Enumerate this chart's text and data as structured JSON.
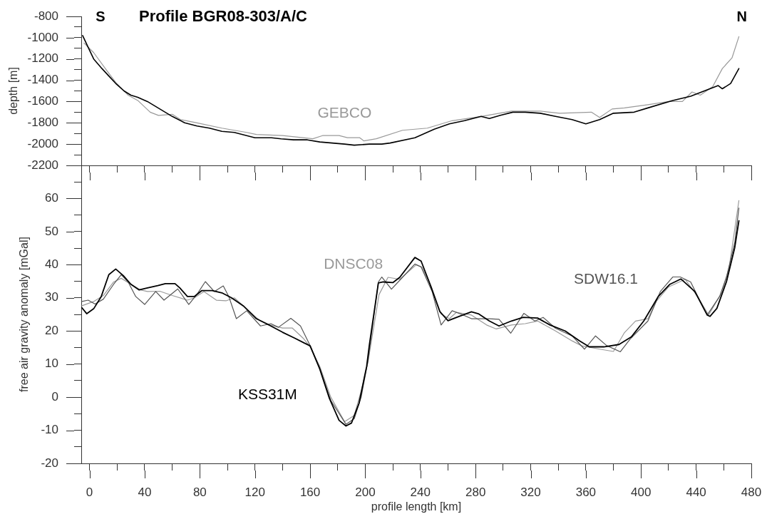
{
  "chart_data": [
    {
      "type": "line",
      "title": "Profile BGR08-303/A/C",
      "ylabel": "depth [m]",
      "xlim": [
        -6,
        480
      ],
      "ylim": [
        -2200,
        -800
      ],
      "xticks": [
        0,
        {
          "value": 20,
          "label": null
        },
        40,
        {
          "value": 60,
          "label": null
        },
        80,
        {
          "value": 100,
          "label": null
        },
        120,
        {
          "value": 140,
          "label": null
        },
        160,
        {
          "value": 180,
          "label": null
        },
        200,
        {
          "value": 220,
          "label": null
        },
        240,
        {
          "value": 260,
          "label": null
        },
        280,
        {
          "value": 300,
          "label": null
        },
        320,
        {
          "value": 340,
          "label": null
        },
        360,
        {
          "value": 380,
          "label": null
        },
        400,
        {
          "value": 420,
          "label": null
        },
        440,
        {
          "value": 460,
          "label": null
        },
        480
      ],
      "yticks": [
        -2200,
        {
          "value": -2100,
          "label": null
        },
        -2000,
        {
          "value": -1900,
          "label": null
        },
        -1800,
        {
          "value": -1700,
          "label": null
        },
        -1600,
        {
          "value": -1500,
          "label": null
        },
        -1400,
        {
          "value": -1300,
          "label": null
        },
        -1200,
        {
          "value": -1100,
          "label": null
        },
        -1000,
        {
          "value": -900,
          "label": null
        },
        -800
      ],
      "tick_labels": "y",
      "annotations": [
        "S",
        "N"
      ],
      "series": [
        {
          "name": "GEBCO",
          "color": "#999999",
          "x": [
            -4,
            3,
            12,
            19,
            28,
            35,
            44,
            50,
            60,
            66,
            78,
            96,
            114,
            121,
            140,
            162,
            169,
            181,
            187,
            196,
            199,
            208,
            227,
            245,
            263,
            284,
            306,
            327,
            341,
            364,
            370,
            379,
            388,
            405,
            420,
            430,
            437,
            443,
            452,
            459,
            466,
            471
          ],
          "values": [
            -1050,
            -1140,
            -1300,
            -1420,
            -1540,
            -1590,
            -1700,
            -1730,
            -1720,
            -1770,
            -1800,
            -1850,
            -1890,
            -1910,
            -1920,
            -1950,
            -1920,
            -1920,
            -1940,
            -1940,
            -1970,
            -1950,
            -1870,
            -1850,
            -1780,
            -1740,
            -1690,
            -1690,
            -1710,
            -1700,
            -1750,
            -1670,
            -1660,
            -1630,
            -1600,
            -1600,
            -1510,
            -1540,
            -1460,
            -1290,
            -1190,
            -990
          ]
        },
        {
          "color": "#000000",
          "x": [
            -5,
            -1,
            3,
            9,
            14,
            19,
            25,
            30,
            35,
            42,
            51,
            60,
            69,
            78,
            87,
            96,
            105,
            114,
            120,
            132,
            139,
            148,
            158,
            167,
            176,
            185,
            192,
            203,
            212,
            218,
            236,
            250,
            261,
            272,
            284,
            290,
            298,
            307,
            316,
            327,
            338,
            350,
            360,
            370,
            380,
            395,
            405,
            423,
            436,
            446,
            456,
            459,
            465,
            471
          ],
          "values": [
            -980,
            -1090,
            -1200,
            -1290,
            -1360,
            -1430,
            -1500,
            -1540,
            -1560,
            -1600,
            -1670,
            -1740,
            -1800,
            -1830,
            -1850,
            -1880,
            -1890,
            -1920,
            -1940,
            -1940,
            -1950,
            -1960,
            -1960,
            -1980,
            -1990,
            -2000,
            -2010,
            -2000,
            -2000,
            -1990,
            -1940,
            -1860,
            -1810,
            -1780,
            -1740,
            -1760,
            -1730,
            -1700,
            -1700,
            -1710,
            -1740,
            -1770,
            -1810,
            -1770,
            -1710,
            -1700,
            -1660,
            -1590,
            -1550,
            -1500,
            -1450,
            -1480,
            -1430,
            -1290
          ]
        }
      ]
    },
    {
      "type": "line",
      "xlabel": "profile length [km]",
      "ylabel": "free air gravity anomaly [mGal]",
      "xlim": [
        -6,
        480
      ],
      "ylim": [
        -20,
        70
      ],
      "xticks": [
        0,
        {
          "value": 20,
          "label": null
        },
        40,
        {
          "value": 60,
          "label": null
        },
        80,
        {
          "value": 100,
          "label": null
        },
        120,
        {
          "value": 140,
          "label": null
        },
        160,
        {
          "value": 180,
          "label": null
        },
        200,
        {
          "value": 220,
          "label": null
        },
        240,
        {
          "value": 260,
          "label": null
        },
        280,
        {
          "value": 300,
          "label": null
        },
        320,
        {
          "value": 340,
          "label": null
        },
        360,
        {
          "value": 380,
          "label": null
        },
        400,
        {
          "value": 420,
          "label": null
        },
        440,
        {
          "value": 460,
          "label": null
        },
        480
      ],
      "yticks": [
        -20,
        {
          "value": -15,
          "label": null
        },
        -10,
        {
          "value": -5,
          "label": null
        },
        0,
        {
          "value": 5,
          "label": null
        },
        10,
        {
          "value": 15,
          "label": null
        },
        20,
        {
          "value": 25,
          "label": null
        },
        30,
        {
          "value": 35,
          "label": null
        },
        40,
        {
          "value": 45,
          "label": null
        },
        50,
        {
          "value": 55,
          "label": null
        },
        60,
        {
          "value": 65,
          "label": null
        }
      ],
      "series": [
        {
          "name": "DNSC08",
          "color": "#999999",
          "x": [
            -5.5,
            3,
            10,
            17.5,
            23,
            30,
            37,
            42,
            51,
            60,
            71,
            76,
            83,
            92,
            99,
            105,
            114,
            123,
            131,
            140,
            147,
            155,
            160,
            167,
            175,
            185,
            192,
            197,
            202,
            210,
            216.5,
            225,
            237,
            241,
            248,
            255,
            261,
            266,
            277,
            288,
            295,
            306,
            316,
            325,
            338,
            350,
            357,
            370,
            380,
            388,
            396,
            405,
            411,
            420,
            432,
            441,
            449,
            459,
            464,
            471
          ],
          "values": [
            27.6,
            28.9,
            30.7,
            34.8,
            35.9,
            34.1,
            32.4,
            31.9,
            32.0,
            30.7,
            29.3,
            30.0,
            31.9,
            29.3,
            29.1,
            30.0,
            26.7,
            23.3,
            21.8,
            20.9,
            20.9,
            17.8,
            15.2,
            9.3,
            0,
            -7.4,
            -5.5,
            1.8,
            10.7,
            31.0,
            36.2,
            35.6,
            40.0,
            39.3,
            33.3,
            25.1,
            23.7,
            25.6,
            24.8,
            21.8,
            20.6,
            21.8,
            22.2,
            23.0,
            20.0,
            17.0,
            15.5,
            14.5,
            13.8,
            19.5,
            23.0,
            23.7,
            28.9,
            33.3,
            35.6,
            30.4,
            24.8,
            31.9,
            39.3,
            59.4
          ]
        },
        {
          "name": "SDW16.1",
          "color": "#555555",
          "x": [
            -5.5,
            -1,
            4,
            10,
            17.5,
            23,
            28,
            33.5,
            40,
            48,
            54,
            64,
            72,
            78,
            84,
            90.5,
            97,
            101,
            106.5,
            114,
            124,
            131.5,
            137,
            146,
            153,
            160,
            167,
            175,
            186,
            192,
            197,
            202,
            209.5,
            212,
            219,
            227,
            236,
            240.5,
            248.5,
            255,
            263,
            270,
            277,
            290,
            297,
            305.5,
            315,
            323,
            329,
            338,
            350,
            359,
            367,
            375,
            385,
            392,
            405,
            414,
            423,
            428.5,
            436,
            443,
            448,
            457,
            462,
            468,
            471
          ],
          "values": [
            28.9,
            29.3,
            28.1,
            29.6,
            34.1,
            37.0,
            34.8,
            30.4,
            28.0,
            31.9,
            29.3,
            32.7,
            28.0,
            31.1,
            34.9,
            31.9,
            33.6,
            30.4,
            23.7,
            26.1,
            21.5,
            22.2,
            21.1,
            23.8,
            21.5,
            15.6,
            8.8,
            -1.0,
            -8.2,
            -6.5,
            0,
            11.0,
            34.8,
            36.3,
            32.6,
            36.2,
            40.2,
            39.3,
            31.9,
            21.8,
            26.1,
            25.0,
            23.7,
            23.7,
            23.5,
            19.3,
            25.3,
            23.0,
            24.1,
            20.8,
            18.5,
            14.5,
            18.5,
            15.6,
            13.7,
            17.5,
            23.0,
            31.9,
            36.3,
            36.3,
            34.8,
            28.9,
            24.8,
            30.4,
            36.3,
            46.7,
            57.1
          ]
        },
        {
          "name": "KSS31M",
          "color": "#000000",
          "x": [
            -5.5,
            -2,
            3,
            8.5,
            14,
            19,
            24.5,
            30,
            36,
            42,
            49.5,
            55,
            62,
            65.5,
            71,
            76,
            81.5,
            89,
            96,
            103,
            112,
            121,
            131.5,
            140,
            149,
            156,
            160,
            167,
            174,
            181,
            186,
            190,
            195.5,
            201,
            203,
            209.5,
            213,
            220,
            225,
            236,
            240.5,
            247,
            254,
            260,
            268,
            277,
            282,
            290,
            297,
            306,
            314.5,
            325,
            334,
            345,
            355.5,
            362.5,
            373,
            384,
            393,
            402,
            412.5,
            421,
            429,
            439,
            448,
            450,
            455,
            462,
            468,
            471
          ],
          "values": [
            27.0,
            25.2,
            26.7,
            30.4,
            37.0,
            38.7,
            36.7,
            34.1,
            32.4,
            33.0,
            33.7,
            34.3,
            34.3,
            33.0,
            30.4,
            30.4,
            32.2,
            32.2,
            31.5,
            30.0,
            27.4,
            23.7,
            21.5,
            19.6,
            17.8,
            16.3,
            15.5,
            8.5,
            -0.4,
            -7.0,
            -8.7,
            -7.8,
            -1.8,
            9.3,
            15.9,
            34.5,
            34.8,
            34.6,
            36.2,
            42.2,
            41.1,
            34.1,
            25.9,
            23.1,
            24.4,
            25.8,
            25.2,
            23.0,
            21.5,
            23.0,
            24.1,
            23.9,
            21.8,
            20.0,
            17.0,
            15.2,
            15.2,
            15.9,
            18.2,
            23.0,
            30.4,
            34.1,
            35.7,
            31.9,
            24.8,
            24.4,
            26.8,
            34.9,
            45.2,
            53.3
          ]
        }
      ]
    }
  ]
}
